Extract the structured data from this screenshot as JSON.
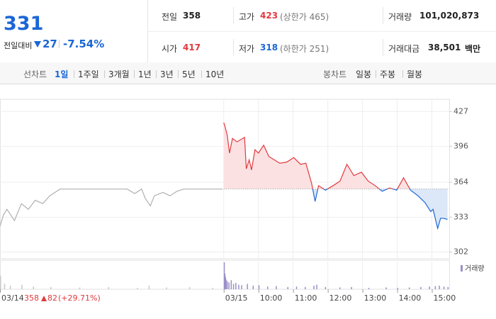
{
  "header": {
    "price": 331,
    "change_label": "전일대비",
    "change": 27,
    "change_pct": "-7.54%",
    "stats": [
      [
        {
          "label": "전일",
          "value": 358
        },
        {
          "label": "고가",
          "value": 423,
          "note": "(상한가 465)"
        },
        {
          "label": "거래량",
          "value": "101,020,873"
        }
      ],
      [
        {
          "label": "시가",
          "value": 417
        },
        {
          "label": "저가",
          "value": 318,
          "note": "(하한가 251)"
        },
        {
          "label": "거래대금",
          "value": "38,501",
          "unit": "백만"
        }
      ]
    ]
  },
  "tabs": {
    "line_label": "선차트",
    "line_tabs": [
      "1일",
      "1주일",
      "3개월",
      "1년",
      "3년",
      "5년",
      "10년"
    ],
    "candle_label": "봉차트",
    "candle_tabs": [
      "일봉",
      "주봉",
      "월봉"
    ]
  },
  "chart_data": {
    "type": "line",
    "baseline": 358,
    "ylim": [
      296,
      436
    ],
    "yticks": [
      427,
      396,
      364,
      333,
      302
    ],
    "xlim": [
      -387,
      390
    ],
    "xticks": [
      {
        "value": -387,
        "label": "03/14"
      },
      {
        "value": 0,
        "label": "03/15"
      },
      {
        "value": 60,
        "label": "10:00"
      },
      {
        "value": 120,
        "label": "11:00"
      },
      {
        "value": 180,
        "label": "12:00"
      },
      {
        "value": 240,
        "label": "13:00"
      },
      {
        "value": 300,
        "label": "14:00"
      },
      {
        "value": 360,
        "label": "15:00"
      }
    ],
    "series": [
      {
        "color": "#b0b0b0",
        "x": [
          -387,
          -381,
          -375,
          -362,
          -350,
          -338,
          -326,
          -313,
          -301,
          -283,
          -167,
          -154,
          -142,
          -136,
          -127,
          -120,
          -105,
          -93,
          -81,
          -69,
          -2
        ],
        "values": [
          325,
          335,
          340,
          330,
          345,
          340,
          348,
          345,
          352,
          358,
          358,
          354,
          358,
          350,
          343,
          352,
          355,
          352,
          356,
          358,
          358
        ]
      },
      {
        "color_up": "#e0393e",
        "color_down": "#1b66d6",
        "x": [
          0,
          2,
          6,
          10,
          15,
          23,
          36,
          39,
          44,
          48,
          54,
          60,
          69,
          78,
          97,
          109,
          121,
          133,
          142,
          152,
          158,
          164,
          176,
          189,
          201,
          213,
          225,
          238,
          250,
          262,
          274,
          287,
          299,
          311,
          323,
          336,
          348,
          358,
          362,
          370,
          375,
          380,
          387
        ],
        "values": [
          417,
          414,
          406,
          390,
          403,
          400,
          404,
          376,
          384,
          375,
          393,
          390,
          397,
          387,
          381,
          382,
          386,
          380,
          381,
          363,
          347,
          361,
          357,
          361,
          365,
          380,
          370,
          373,
          365,
          361,
          356,
          359,
          357,
          368,
          357,
          352,
          346,
          338,
          340,
          323,
          332,
          332,
          331
        ]
      }
    ],
    "volume": {
      "label": "거래량",
      "vlim": [
        0,
        60
      ],
      "prev_x": [
        -387,
        -380,
        -370,
        -350,
        -330,
        -300,
        -250,
        -200,
        -150,
        -130,
        -100,
        -60,
        -20
      ],
      "prev_values": [
        30,
        12,
        8,
        10,
        6,
        5,
        4,
        5,
        3,
        8,
        4,
        5,
        3
      ],
      "x": [
        0,
        1,
        2,
        3,
        5,
        8,
        12,
        16,
        20,
        25,
        30,
        40,
        50,
        60,
        75,
        90,
        110,
        125,
        140,
        155,
        160,
        175,
        200,
        220,
        250,
        280,
        300,
        320,
        340,
        355,
        365,
        372,
        380,
        387
      ],
      "values": [
        60,
        35,
        28,
        22,
        18,
        15,
        20,
        12,
        14,
        10,
        9,
        12,
        8,
        9,
        6,
        7,
        5,
        6,
        5,
        8,
        10,
        5,
        4,
        5,
        3,
        4,
        3,
        4,
        5,
        6,
        7,
        8,
        6,
        5
      ]
    },
    "prev_summary": {
      "close": 358,
      "change": 82,
      "change_pct": "(+29.71%)"
    }
  }
}
